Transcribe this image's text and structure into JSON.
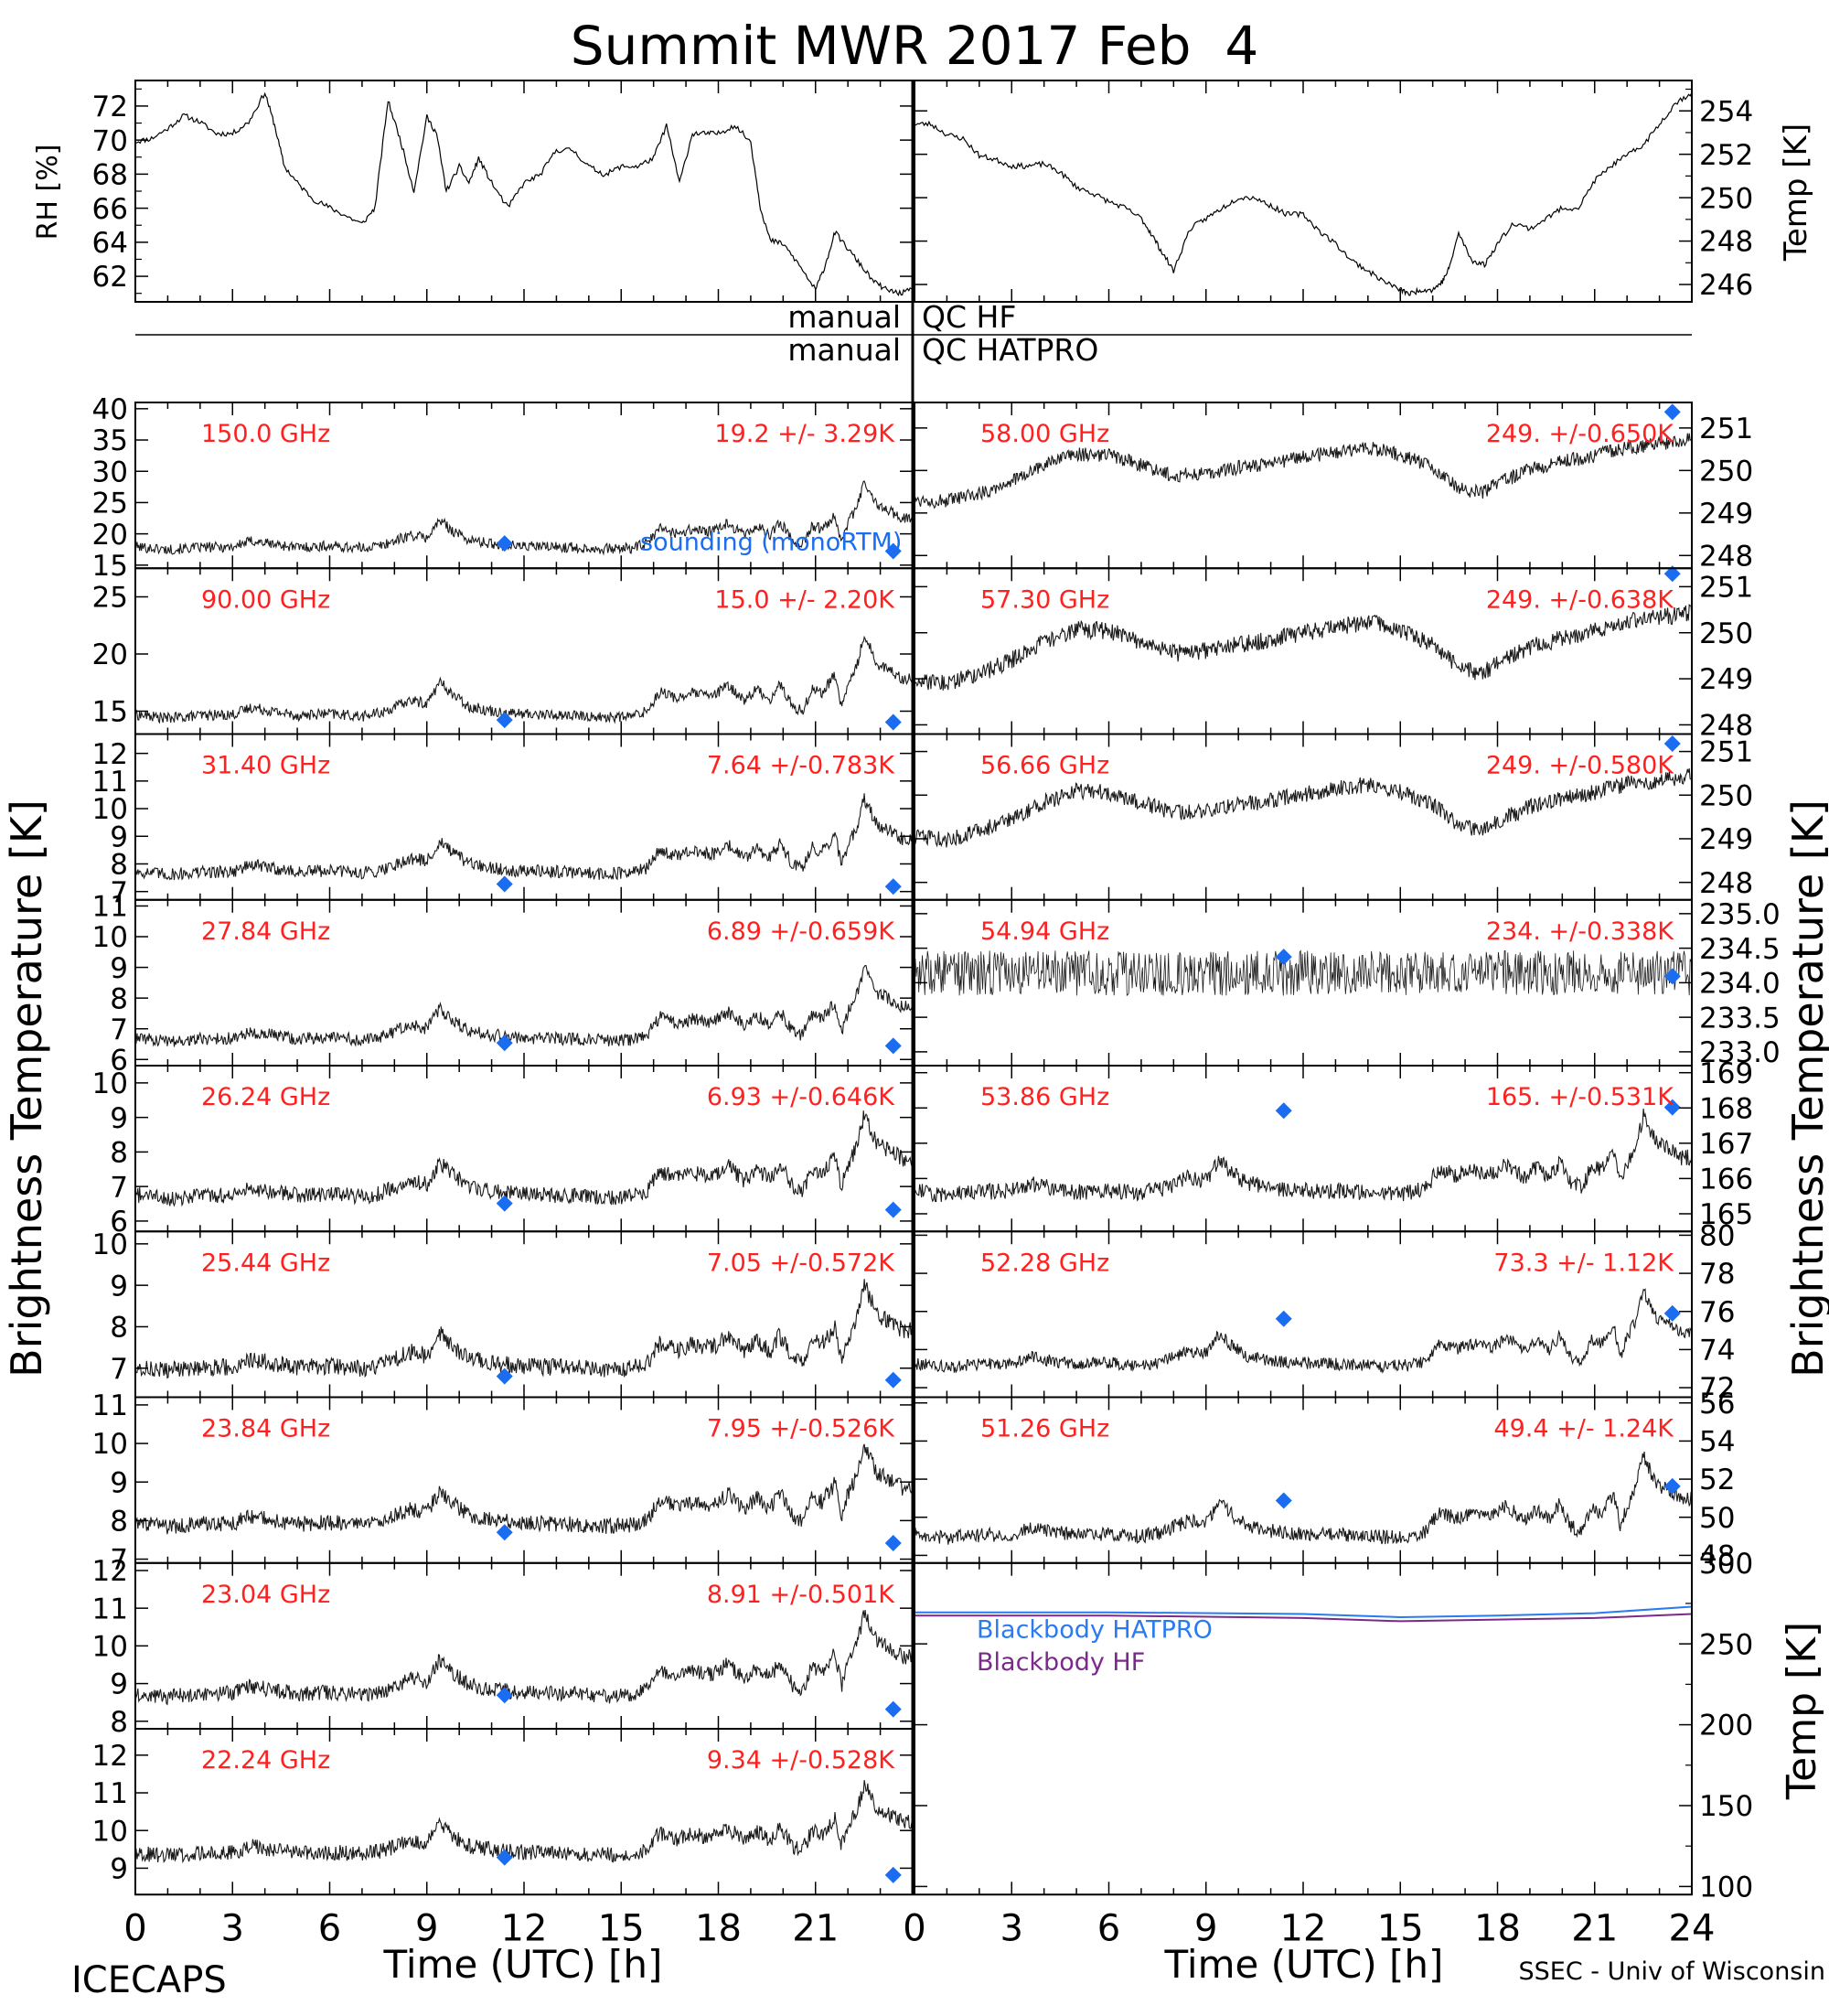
{
  "page": {
    "title": "Summit MWR 2017 Feb  4",
    "footer_left": "ICECAPS",
    "footer_right": "SSEC - Univ of Wisconsin"
  },
  "colors": {
    "channel_label": "#ff2020",
    "sounding_marker": "#1a6cf0",
    "blackbody_hatpro": "#2a7af0",
    "blackbody_hf": "#7a2a8a",
    "trace": "#000000"
  },
  "axes": {
    "x_label": "Time (UTC) [h]",
    "x_ticks": [
      0,
      3,
      6,
      9,
      12,
      15,
      18,
      21,
      24
    ],
    "x_tick_labels_left": [
      "0",
      "3",
      "6",
      "9",
      "12",
      "15",
      "18",
      "21"
    ],
    "x_tick_labels_right": [
      "0",
      "3",
      "6",
      "9",
      "12",
      "15",
      "18",
      "21",
      "24"
    ],
    "bt_label_left": "Brightness Temperature [K]",
    "bt_label_right": "Brightness Temperature [K]"
  },
  "qc": {
    "hf": {
      "left": "manual",
      "right": "QC HF"
    },
    "hatpro": {
      "left": "manual",
      "right": "QC HATPRO"
    }
  },
  "chart_data": [
    {
      "type": "line",
      "name": "rh",
      "ylabel": "RH [%]",
      "ylim": [
        60.5,
        73.5
      ],
      "yticks": [
        62,
        64,
        66,
        68,
        70,
        72
      ],
      "x": [
        0,
        0.5,
        1,
        1.5,
        2,
        2.5,
        3,
        3.5,
        4,
        4.3,
        4.6,
        5,
        5.5,
        6,
        6.5,
        7,
        7.4,
        7.8,
        8.2,
        8.6,
        9,
        9.3,
        9.6,
        10,
        10.3,
        10.6,
        11,
        11.5,
        12,
        12.5,
        13,
        13.5,
        14,
        14.5,
        15,
        15.5,
        16,
        16.4,
        16.8,
        17.2,
        17.6,
        18,
        18.5,
        19,
        19.3,
        19.6,
        20,
        20.5,
        21,
        21.3,
        21.6,
        22,
        22.4,
        22.8,
        23.2,
        23.6,
        24
      ],
      "values": [
        70,
        70.2,
        70.8,
        71.6,
        71.2,
        70.5,
        70.5,
        71.2,
        73,
        71,
        68.5,
        67.5,
        66.5,
        66,
        65.5,
        65,
        66,
        72.5,
        70,
        67,
        71.5,
        70.5,
        67,
        68.5,
        67.5,
        69,
        67.5,
        66,
        67.5,
        68,
        69.5,
        69.5,
        68.5,
        68,
        68.5,
        68.5,
        69,
        71,
        67.5,
        70.5,
        70.5,
        70.5,
        71,
        70,
        66,
        64,
        63.8,
        62.5,
        61,
        62.5,
        64.5,
        63.5,
        62.5,
        61.5,
        61,
        60.8,
        61
      ]
    },
    {
      "type": "line",
      "name": "temp",
      "ylabel": "Temp [K]",
      "ylim": [
        245.2,
        255.4
      ],
      "yticks": [
        246,
        248,
        250,
        252,
        254
      ],
      "x": [
        0,
        0.5,
        1,
        1.5,
        2,
        2.5,
        3,
        3.5,
        4,
        4.5,
        5,
        5.5,
        6,
        6.5,
        7,
        7.3,
        7.6,
        8,
        8.5,
        9,
        9.5,
        10,
        10.5,
        11,
        11.5,
        12,
        12.5,
        13,
        13.5,
        14,
        14.5,
        15,
        15.3,
        15.6,
        16,
        16.3,
        16.5,
        16.8,
        17.2,
        17.6,
        18,
        18.5,
        19,
        19.5,
        20,
        20.5,
        21,
        21.5,
        22,
        22.5,
        23,
        23.5,
        24
      ],
      "values": [
        253.5,
        253.5,
        253,
        252.8,
        252,
        251.8,
        251.5,
        251.5,
        251.6,
        251.2,
        250.5,
        250.2,
        249.8,
        249.5,
        249,
        248.3,
        247.5,
        246.5,
        248.5,
        249,
        249.5,
        250,
        250,
        249.6,
        249.2,
        249.2,
        248.4,
        247.8,
        247,
        246.5,
        246,
        245.6,
        245.4,
        245.6,
        245.6,
        246,
        246.6,
        248.3,
        247,
        246.8,
        247.8,
        248.8,
        248.5,
        249,
        249.5,
        249.5,
        250.8,
        251.5,
        252,
        252.5,
        253.5,
        254.5,
        255
      ]
    },
    {
      "type": "line",
      "name": "bt_150",
      "label": "150.0 GHz",
      "stats": "19.2 +/-  3.29K",
      "ylim": [
        14.5,
        41
      ],
      "yticks": [
        15,
        20,
        25,
        30,
        35,
        40
      ],
      "base": 16.5,
      "amp": 12.5,
      "noise": 0.9,
      "sounding_note": "sounding (monoRTM)",
      "soundings": [
        {
          "x": 11.4,
          "y": 17.8
        },
        {
          "x": 23.4,
          "y": 16.5
        }
      ]
    },
    {
      "type": "line",
      "name": "bt_90",
      "label": "90.00 GHz",
      "stats": "15.0 +/-  2.20K",
      "ylim": [
        13,
        27.5
      ],
      "yticks": [
        15,
        20,
        25
      ],
      "base": 13.8,
      "amp": 8.5,
      "noise": 0.5,
      "soundings": [
        {
          "x": 11.4,
          "y": 13.8
        },
        {
          "x": 23.4,
          "y": 13.6
        }
      ]
    },
    {
      "type": "line",
      "name": "bt_31",
      "label": "31.40 GHz",
      "stats": "7.64 +/-0.783K",
      "ylim": [
        6.7,
        12.7
      ],
      "yticks": [
        7,
        8,
        9,
        10,
        11,
        12
      ],
      "base": 7.4,
      "amp": 3.2,
      "noise": 0.25,
      "soundings": [
        {
          "x": 11.4,
          "y": 7.1
        },
        {
          "x": 23.4,
          "y": 7.0
        }
      ]
    },
    {
      "type": "line",
      "name": "bt_27",
      "label": "27.84 GHz",
      "stats": "6.89 +/-0.659K",
      "ylim": [
        5.8,
        11.2
      ],
      "yticks": [
        6,
        7,
        8,
        9,
        10,
        11
      ],
      "base": 6.4,
      "amp": 2.8,
      "noise": 0.22,
      "soundings": [
        {
          "x": 11.4,
          "y": 6.4
        },
        {
          "x": 23.4,
          "y": 6.3
        }
      ]
    },
    {
      "type": "line",
      "name": "bt_26",
      "label": "26.24 GHz",
      "stats": "6.93 +/-0.646K",
      "ylim": [
        5.7,
        10.5
      ],
      "yticks": [
        6,
        7,
        8,
        9,
        10
      ],
      "base": 6.5,
      "amp": 2.8,
      "noise": 0.25,
      "soundings": [
        {
          "x": 11.4,
          "y": 6.4
        },
        {
          "x": 23.4,
          "y": 6.2
        }
      ]
    },
    {
      "type": "line",
      "name": "bt_25",
      "label": "25.44 GHz",
      "stats": "7.05 +/-0.572K",
      "ylim": [
        6.3,
        10.3
      ],
      "yticks": [
        7,
        8,
        9,
        10
      ],
      "base": 6.8,
      "amp": 2.4,
      "noise": 0.22,
      "soundings": [
        {
          "x": 11.4,
          "y": 6.7
        },
        {
          "x": 23.4,
          "y": 6.6
        }
      ]
    },
    {
      "type": "line",
      "name": "bt_23_84",
      "label": "23.84 GHz",
      "stats": "7.95 +/-0.526K",
      "ylim": [
        6.9,
        11.2
      ],
      "yticks": [
        7,
        8,
        9,
        10,
        11
      ],
      "base": 7.7,
      "amp": 2.5,
      "noise": 0.22,
      "soundings": [
        {
          "x": 11.4,
          "y": 7.6
        },
        {
          "x": 23.4,
          "y": 7.3
        }
      ]
    },
    {
      "type": "line",
      "name": "bt_23_04",
      "label": "23.04 GHz",
      "stats": "8.91 +/-0.501K",
      "ylim": [
        7.8,
        12.2
      ],
      "yticks": [
        8,
        9,
        10,
        11,
        12
      ],
      "base": 8.5,
      "amp": 2.6,
      "noise": 0.22,
      "soundings": [
        {
          "x": 11.4,
          "y": 8.6
        },
        {
          "x": 23.4,
          "y": 8.2
        }
      ]
    },
    {
      "type": "line",
      "name": "bt_22",
      "label": "22.24 GHz",
      "stats": "9.34 +/-0.528K",
      "ylim": [
        8.3,
        12.7
      ],
      "yticks": [
        9,
        10,
        11,
        12
      ],
      "base": 9.2,
      "amp": 2.2,
      "noise": 0.22,
      "soundings": [
        {
          "x": 11.4,
          "y": 9.2
        },
        {
          "x": 23.4,
          "y": 8.7
        }
      ]
    },
    {
      "type": "line",
      "name": "bt_58",
      "label": "58.00 GHz",
      "stats": "249. +/-0.650K",
      "ylim": [
        247.7,
        251.6
      ],
      "yticks": [
        248,
        249,
        250,
        251
      ],
      "base": 249.0,
      "amp": 2.0,
      "noise": 0.18,
      "kind": "oxygen",
      "soundings": [
        {
          "x": 23.4,
          "y": 251.5
        }
      ]
    },
    {
      "type": "line",
      "name": "bt_57",
      "label": "57.30 GHz",
      "stats": "249. +/-0.638K",
      "ylim": [
        247.8,
        251.4
      ],
      "yticks": [
        248,
        249,
        250,
        251
      ],
      "base": 248.6,
      "amp": 2.1,
      "noise": 0.2,
      "kind": "oxygen",
      "soundings": [
        {
          "x": 23.4,
          "y": 251.4
        }
      ]
    },
    {
      "type": "line",
      "name": "bt_56",
      "label": "56.66 GHz",
      "stats": "249. +/-0.580K",
      "ylim": [
        247.6,
        251.4
      ],
      "yticks": [
        248,
        249,
        250,
        251
      ],
      "base": 248.7,
      "amp": 2.0,
      "noise": 0.2,
      "kind": "oxygen",
      "soundings": [
        {
          "x": 23.4,
          "y": 251.3
        }
      ]
    },
    {
      "type": "line",
      "name": "bt_54",
      "label": "54.94 GHz",
      "stats": "234. +/-0.338K",
      "ylim": [
        232.8,
        235.2
      ],
      "yticks": [
        233.0,
        233.5,
        234.0,
        234.5,
        235.0
      ],
      "ytick_labels": [
        "233.0",
        "233.5",
        "234.0",
        "234.5",
        "235.0"
      ],
      "base": 234.0,
      "amp": 0.3,
      "noise": 0.35,
      "kind": "flat",
      "soundings": [
        {
          "x": 11.4,
          "y": 234.4
        },
        {
          "x": 23.4,
          "y": 234.1
        }
      ]
    },
    {
      "type": "line",
      "name": "bt_53",
      "label": "53.86 GHz",
      "stats": "165. +/-0.531K",
      "ylim": [
        164.5,
        169.2
      ],
      "yticks": [
        165,
        166,
        167,
        168,
        169
      ],
      "base": 165.4,
      "amp": 2.6,
      "noise": 0.25,
      "soundings": [
        {
          "x": 11.4,
          "y": 168.0
        },
        {
          "x": 23.4,
          "y": 168.1
        }
      ]
    },
    {
      "type": "line",
      "name": "bt_52",
      "label": "52.28 GHz",
      "stats": "73.3 +/-  1.12K",
      "ylim": [
        71.5,
        80.2
      ],
      "yticks": [
        72,
        74,
        76,
        78,
        80
      ],
      "base": 72.8,
      "amp": 4.6,
      "noise": 0.35,
      "soundings": [
        {
          "x": 11.4,
          "y": 75.6
        },
        {
          "x": 23.4,
          "y": 75.9
        }
      ]
    },
    {
      "type": "line",
      "name": "bt_51",
      "label": "51.26 GHz",
      "stats": "49.4 +/-  1.24K",
      "ylim": [
        47.6,
        56.3
      ],
      "yticks": [
        48,
        50,
        52,
        54,
        56
      ],
      "base": 48.6,
      "amp": 5.0,
      "noise": 0.4,
      "soundings": [
        {
          "x": 11.4,
          "y": 50.8
        },
        {
          "x": 23.4,
          "y": 51.6
        }
      ]
    },
    {
      "type": "line",
      "name": "blackbody",
      "ylabel": "Temp [K]",
      "ylim": [
        95,
        300
      ],
      "yticks": [
        100,
        150,
        200,
        250,
        300
      ],
      "series": [
        {
          "name": "Blackbody HATPRO",
          "x": [
            0,
            6,
            12,
            15,
            18,
            21,
            24
          ],
          "values": [
            269.5,
            269.5,
            268.5,
            266.5,
            267.5,
            269,
            273
          ]
        },
        {
          "name": "Blackbody HF",
          "x": [
            0,
            6,
            12,
            15,
            18,
            21,
            24
          ],
          "values": [
            267.5,
            267.5,
            266,
            264,
            265,
            266,
            268.5
          ]
        }
      ]
    }
  ]
}
